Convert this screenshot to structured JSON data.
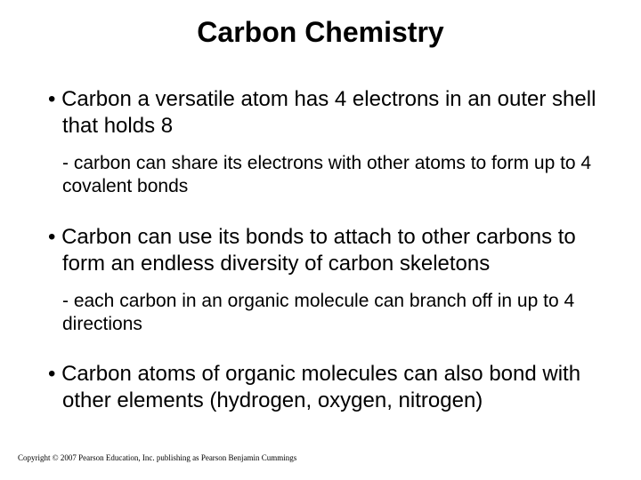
{
  "title": "Carbon Chemistry",
  "bullets": [
    {
      "main": "Carbon a versatile atom has 4 electrons in an outer shell that holds 8",
      "sub": "- carbon can share its electrons with other atoms to form up to 4 covalent bonds"
    },
    {
      "main": "Carbon can use its bonds to attach to other carbons to form an endless diversity of carbon skeletons",
      "sub": "- each carbon in an organic molecule can branch off in up to 4 directions"
    },
    {
      "main": "Carbon atoms of organic molecules can also bond with other elements (hydrogen, oxygen, nitrogen)",
      "sub": null
    }
  ],
  "copyright": "Copyright © 2007 Pearson Education, Inc. publishing as Pearson Benjamin Cummings",
  "colors": {
    "background": "#ffffff",
    "text": "#000000"
  },
  "typography": {
    "title_fontsize": 32,
    "main_fontsize": 24,
    "sub_fontsize": 21,
    "copyright_fontsize": 9
  }
}
